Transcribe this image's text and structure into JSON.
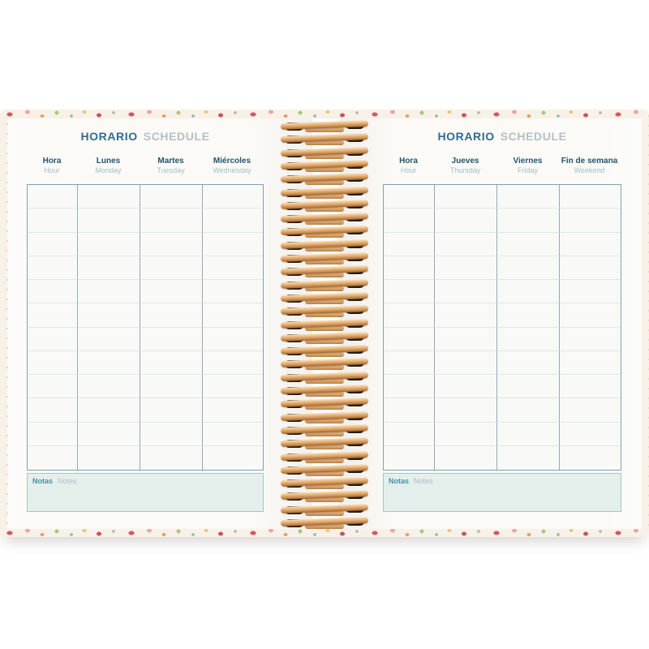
{
  "palette": {
    "title_primary": "#336a8e",
    "title_secondary": "#b4c0c6",
    "day_label_es": "#23536e",
    "day_label_en": "#a4bcc4",
    "grid_border": "#7fa3ad",
    "notes_fill": "#e4efec",
    "notes_label": "#3f94a4",
    "spiral_wire": "#d9a36d",
    "cover_pattern_base": "#f8f1e8"
  },
  "pages": [
    {
      "side": "left",
      "title_es": "HORARIO",
      "title_en": "SCHEDULE",
      "columns": [
        {
          "es": "Hora",
          "en": "Hour"
        },
        {
          "es": "Lunes",
          "en": "Monday"
        },
        {
          "es": "Martes",
          "en": "Tuesday"
        },
        {
          "es": "Miércoles",
          "en": "Wednesday"
        }
      ],
      "rows": 12,
      "notes_es": "Notas",
      "notes_en": "Notes"
    },
    {
      "side": "right",
      "title_es": "HORARIO",
      "title_en": "SCHEDULE",
      "columns": [
        {
          "es": "Hora",
          "en": "Hour"
        },
        {
          "es": "Jueves",
          "en": "Thursday"
        },
        {
          "es": "Viernes",
          "en": "Friday"
        },
        {
          "es": "Fin de semana",
          "en": "Weekend"
        }
      ],
      "rows": 12,
      "notes_es": "Notas",
      "notes_en": "Notes"
    }
  ]
}
